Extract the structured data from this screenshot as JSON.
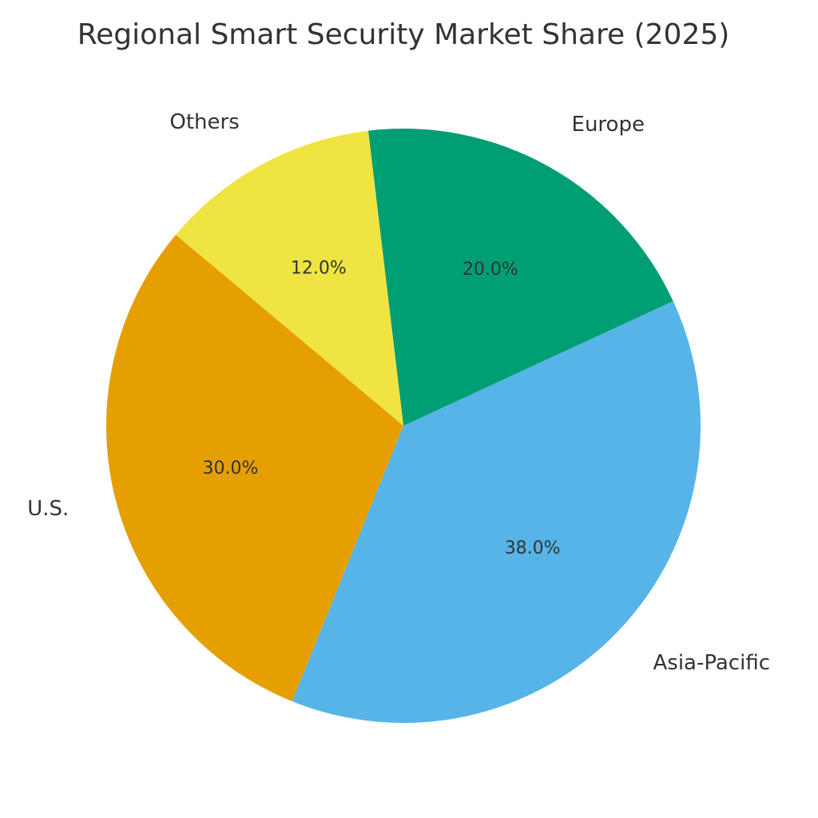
{
  "chart_data": {
    "type": "pie",
    "title": "Regional Smart Security Market Share (2025)",
    "labels": [
      "Asia-Pacific",
      "Europe",
      "Others",
      "U.S."
    ],
    "values": [
      38.0,
      20.0,
      12.0,
      30.0
    ],
    "value_labels": [
      "38.0%",
      "20.0%",
      "12.0%",
      "30.0%"
    ],
    "colors": [
      "#56B4E9",
      "#009E73",
      "#F0E442",
      "#E69F00"
    ],
    "start_angle_deg": -112,
    "direction": "counterclockwise",
    "legend": "none"
  }
}
